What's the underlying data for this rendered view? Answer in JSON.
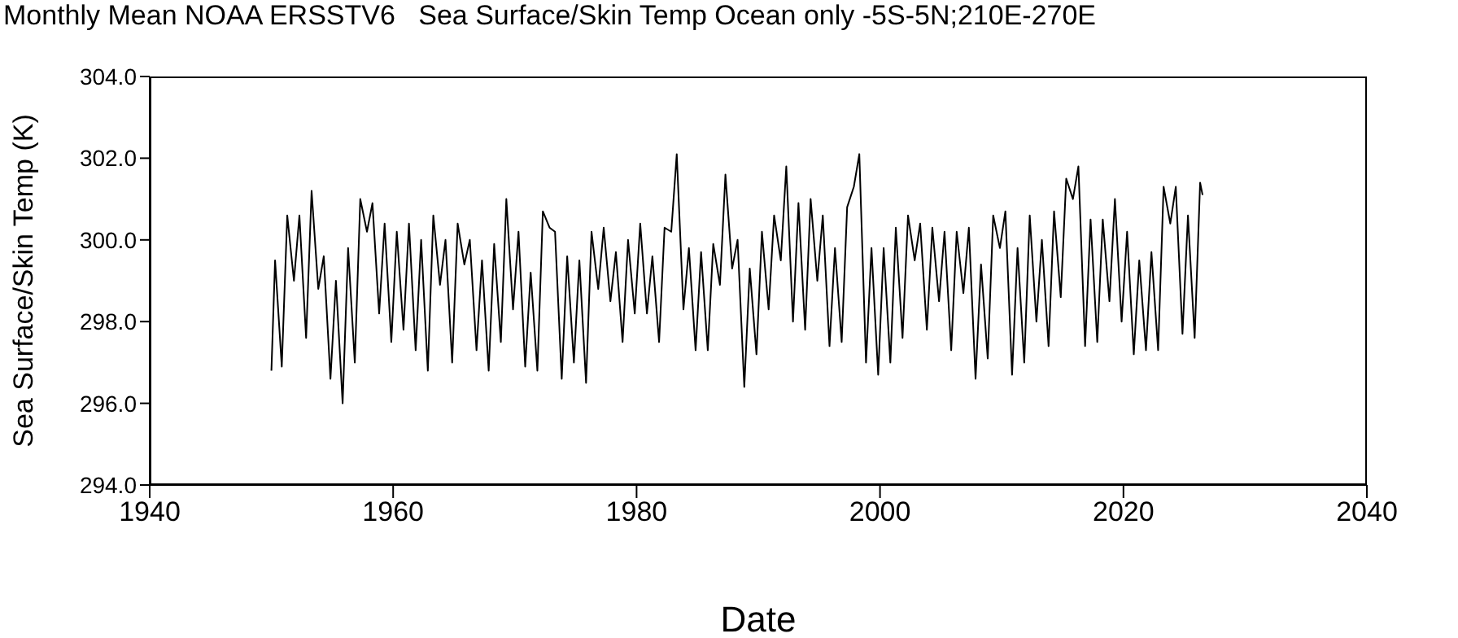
{
  "chart_data": {
    "type": "line",
    "title": "Monthly Mean NOAA ERSSTV6   Sea Surface/Skin Temp Ocean only -5S-5N;210E-270E",
    "xlabel": "Date",
    "ylabel": "Sea Surface/Skin Temp (K)",
    "x": [
      1950.0,
      1950.3,
      1950.85,
      1951.3,
      1951.85,
      1952.3,
      1952.85,
      1953.3,
      1953.85,
      1954.3,
      1954.85,
      1955.3,
      1955.85,
      1956.3,
      1956.85,
      1957.3,
      1957.85,
      1958.3,
      1958.85,
      1959.3,
      1959.85,
      1960.3,
      1960.85,
      1961.3,
      1961.85,
      1962.3,
      1962.85,
      1963.3,
      1963.85,
      1964.3,
      1964.85,
      1965.3,
      1965.85,
      1966.3,
      1966.85,
      1967.3,
      1967.85,
      1968.3,
      1968.85,
      1969.3,
      1969.85,
      1970.3,
      1970.85,
      1971.3,
      1971.85,
      1972.3,
      1972.85,
      1973.3,
      1973.85,
      1974.3,
      1974.85,
      1975.3,
      1975.85,
      1976.3,
      1976.85,
      1977.3,
      1977.85,
      1978.3,
      1978.85,
      1979.3,
      1979.85,
      1980.3,
      1980.85,
      1981.3,
      1981.85,
      1982.3,
      1982.85,
      1983.3,
      1983.85,
      1984.3,
      1984.85,
      1985.3,
      1985.85,
      1986.3,
      1986.85,
      1987.3,
      1987.85,
      1988.3,
      1988.85,
      1989.3,
      1989.85,
      1990.3,
      1990.85,
      1991.3,
      1991.85,
      1992.3,
      1992.85,
      1993.3,
      1993.85,
      1994.3,
      1994.85,
      1995.3,
      1995.85,
      1996.3,
      1996.85,
      1997.3,
      1997.85,
      1998.3,
      1998.85,
      1999.3,
      1999.85,
      2000.3,
      2000.85,
      2001.3,
      2001.85,
      2002.3,
      2002.85,
      2003.3,
      2003.85,
      2004.3,
      2004.85,
      2005.3,
      2005.85,
      2006.3,
      2006.85,
      2007.3,
      2007.85,
      2008.3,
      2008.85,
      2009.3,
      2009.85,
      2010.3,
      2010.85,
      2011.3,
      2011.85,
      2012.3,
      2012.85,
      2013.3,
      2013.85,
      2014.3,
      2014.85,
      2015.3,
      2015.85,
      2016.3,
      2016.85,
      2017.3,
      2017.85,
      2018.3,
      2018.85,
      2019.3,
      2019.85,
      2020.3,
      2020.85,
      2021.3,
      2021.85,
      2022.3,
      2022.85,
      2023.3,
      2023.85,
      2024.3,
      2024.85,
      2025.3,
      2025.85,
      2026.3,
      2026.5
    ],
    "series": [
      {
        "color": "#000000",
        "values": [
          296.8,
          299.5,
          296.9,
          300.6,
          299.0,
          300.6,
          297.6,
          301.2,
          298.8,
          299.6,
          296.6,
          299.0,
          296.0,
          299.8,
          297.0,
          301.0,
          300.2,
          300.9,
          298.2,
          300.4,
          297.5,
          300.2,
          297.8,
          300.4,
          297.3,
          300.0,
          296.8,
          300.6,
          298.9,
          300.0,
          297.0,
          300.4,
          299.4,
          300.0,
          297.3,
          299.5,
          296.8,
          299.9,
          297.5,
          301.0,
          298.3,
          300.2,
          296.9,
          299.2,
          296.8,
          300.7,
          300.3,
          300.2,
          296.6,
          299.6,
          297.0,
          299.5,
          296.5,
          300.2,
          298.8,
          300.3,
          298.5,
          299.7,
          297.5,
          300.0,
          298.2,
          300.4,
          298.2,
          299.6,
          297.5,
          300.3,
          300.2,
          302.1,
          298.3,
          299.8,
          297.3,
          299.7,
          297.3,
          299.9,
          298.9,
          301.6,
          299.3,
          300.0,
          296.4,
          299.3,
          297.2,
          300.2,
          298.3,
          300.6,
          299.5,
          301.8,
          298.0,
          300.9,
          297.8,
          301.0,
          299.0,
          300.6,
          297.4,
          299.8,
          297.5,
          300.8,
          301.3,
          302.1,
          297.0,
          299.8,
          296.7,
          299.8,
          297.0,
          300.3,
          297.6,
          300.6,
          299.5,
          300.4,
          297.8,
          300.3,
          298.5,
          300.2,
          297.3,
          300.2,
          298.7,
          300.3,
          296.6,
          299.4,
          297.1,
          300.6,
          299.8,
          300.7,
          296.7,
          299.8,
          297.0,
          300.6,
          298.0,
          300.0,
          297.4,
          300.7,
          298.6,
          301.5,
          301.0,
          301.8,
          297.4,
          300.5,
          297.5,
          300.5,
          298.5,
          301.0,
          298.0,
          300.2,
          297.2,
          299.5,
          297.3,
          299.7,
          297.3,
          301.3,
          300.4,
          301.3,
          297.7,
          300.6,
          297.6,
          301.4,
          301.1
        ]
      }
    ],
    "xlim": [
      1940,
      2040
    ],
    "xticks": [
      1940,
      1960,
      1980,
      2000,
      2020,
      2040
    ],
    "ylim": [
      294,
      304
    ],
    "yticks": [
      {
        "value": 294,
        "label": "294.0"
      },
      {
        "value": 296,
        "label": "296.0"
      },
      {
        "value": 298,
        "label": "298.0"
      },
      {
        "value": 300,
        "label": "300.0"
      },
      {
        "value": 302,
        "label": "302.0"
      },
      {
        "value": 304,
        "label": "304.0"
      }
    ],
    "grid": false,
    "marker": "none",
    "line_style": "solid"
  }
}
